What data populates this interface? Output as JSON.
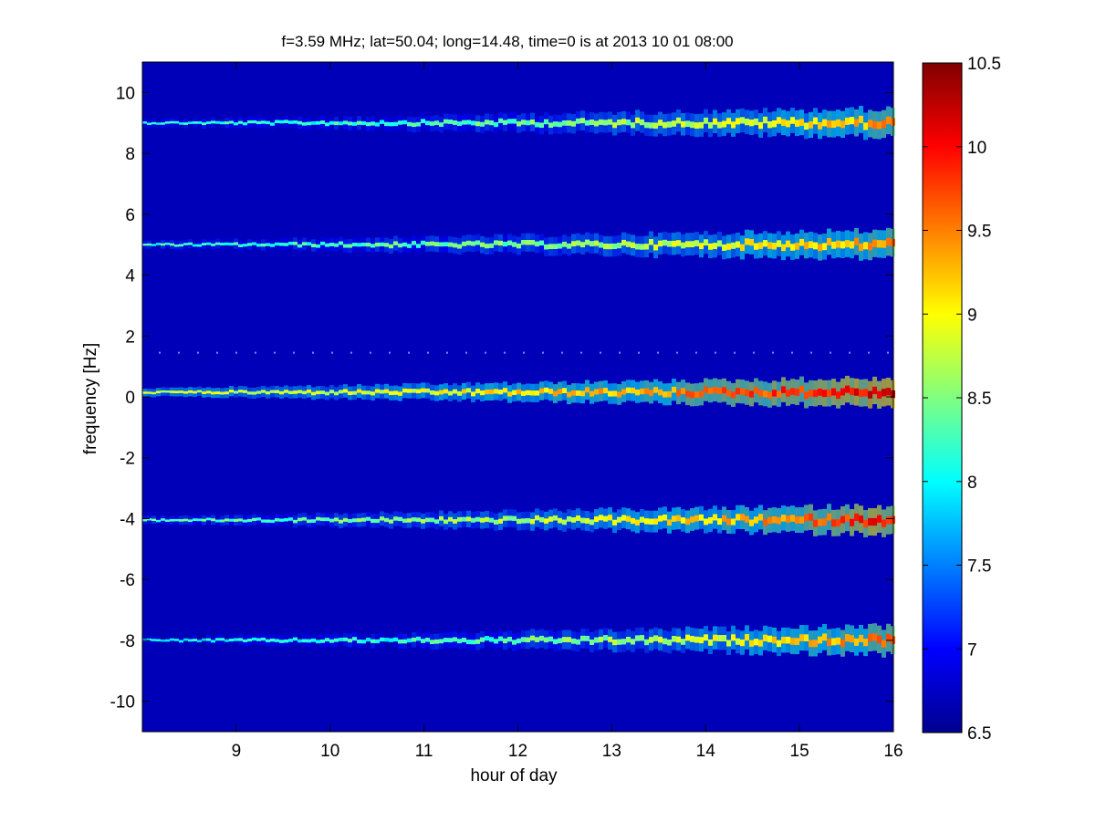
{
  "chart_data": {
    "type": "heatmap",
    "title": "f=3.59 MHz;  lat=50.04; long=14.48, time=0 is at 2013 10 01 08:00",
    "xlabel": "hour of day",
    "ylabel": "frequency [Hz]",
    "xlim": [
      8,
      16
    ],
    "ylim": [
      -11,
      11
    ],
    "xticks": [
      9,
      10,
      11,
      12,
      13,
      14,
      15,
      16
    ],
    "yticks": [
      -10,
      -8,
      -6,
      -4,
      -2,
      0,
      2,
      4,
      6,
      8,
      10
    ],
    "colorbar": {
      "range": [
        6.5,
        10.5
      ],
      "ticks": [
        6.5,
        7,
        7.5,
        8,
        8.5,
        9,
        9.5,
        10,
        10.5
      ],
      "colormap": "jet"
    },
    "background_level": 6.7,
    "bands": [
      {
        "frequency": 9.0,
        "level_start": 8.1,
        "level_end": 9.4
      },
      {
        "frequency": 5.0,
        "level_start": 8.2,
        "level_end": 9.4
      },
      {
        "frequency": 0.15,
        "level_start": 8.8,
        "level_end": 10.2
      },
      {
        "frequency": -4.05,
        "level_start": 8.3,
        "level_end": 10.0
      },
      {
        "frequency": -8.0,
        "level_start": 8.0,
        "level_end": 9.6
      }
    ],
    "dotted_line_frequency": 1.45
  },
  "colors": {
    "background": "#ffffff",
    "axis": "#000000",
    "plot_bg": "#0000b8"
  }
}
